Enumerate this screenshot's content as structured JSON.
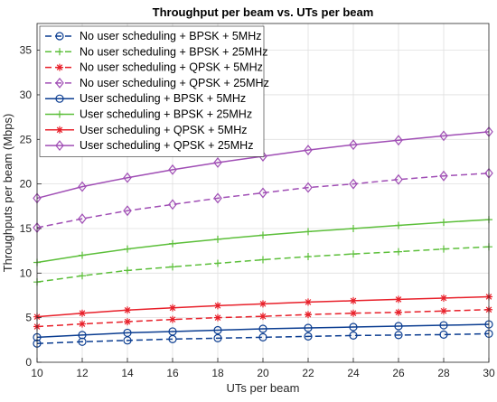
{
  "chart_data": {
    "type": "line",
    "title": "Throughput per beam vs. UTs per beam",
    "xlabel": "UTs per beam",
    "ylabel": "Throughputs per beam (Mbps)",
    "xlim": [
      10,
      30
    ],
    "ylim": [
      0,
      38
    ],
    "xticks": [
      10,
      12,
      14,
      16,
      18,
      20,
      22,
      24,
      26,
      28,
      30
    ],
    "yticks": [
      0,
      5,
      10,
      15,
      20,
      25,
      30,
      35
    ],
    "grid": true,
    "legend_position": "top-left",
    "x": [
      10,
      12,
      14,
      16,
      18,
      20,
      22,
      24,
      26,
      28,
      30
    ],
    "series": [
      {
        "name": "No user scheduling + BPSK + 5MHz",
        "color": "#0b3d91",
        "dash": "dashed",
        "marker": "circle",
        "values": [
          2.1,
          2.3,
          2.45,
          2.6,
          2.7,
          2.8,
          2.9,
          3.0,
          3.05,
          3.1,
          3.2
        ]
      },
      {
        "name": "No user scheduling + BPSK + 25MHz",
        "color": "#5cbf3a",
        "dash": "dashed",
        "marker": "plus",
        "values": [
          9.0,
          9.7,
          10.3,
          10.7,
          11.1,
          11.5,
          11.85,
          12.15,
          12.4,
          12.7,
          12.95
        ]
      },
      {
        "name": "No user scheduling + QPSK + 5MHz",
        "color": "#e8202a",
        "dash": "dashed",
        "marker": "star",
        "values": [
          4.0,
          4.3,
          4.55,
          4.8,
          5.0,
          5.15,
          5.35,
          5.5,
          5.6,
          5.75,
          5.9
        ]
      },
      {
        "name": "No user scheduling + QPSK + 25MHz",
        "color": "#a04eb5",
        "dash": "dashed",
        "marker": "diamond",
        "values": [
          15.1,
          16.1,
          17.0,
          17.7,
          18.4,
          19.0,
          19.6,
          20.0,
          20.5,
          20.9,
          21.2
        ]
      },
      {
        "name": "User scheduling + BPSK + 5MHz",
        "color": "#0b3d91",
        "dash": "solid",
        "marker": "circle",
        "values": [
          2.8,
          3.05,
          3.3,
          3.45,
          3.6,
          3.75,
          3.85,
          3.95,
          4.05,
          4.15,
          4.25
        ]
      },
      {
        "name": "User scheduling + BPSK + 25MHz",
        "color": "#5cbf3a",
        "dash": "solid",
        "marker": "plus",
        "values": [
          11.2,
          12.0,
          12.7,
          13.3,
          13.8,
          14.25,
          14.65,
          15.0,
          15.35,
          15.7,
          16.0
        ]
      },
      {
        "name": "User scheduling + QPSK + 5MHz",
        "color": "#e8202a",
        "dash": "solid",
        "marker": "star",
        "values": [
          5.1,
          5.5,
          5.85,
          6.1,
          6.35,
          6.55,
          6.75,
          6.9,
          7.05,
          7.2,
          7.35
        ]
      },
      {
        "name": "User scheduling + QPSK + 25MHz",
        "color": "#a04eb5",
        "dash": "solid",
        "marker": "diamond",
        "values": [
          18.4,
          19.7,
          20.7,
          21.6,
          22.4,
          23.1,
          23.8,
          24.4,
          24.9,
          25.4,
          25.85
        ]
      }
    ]
  }
}
